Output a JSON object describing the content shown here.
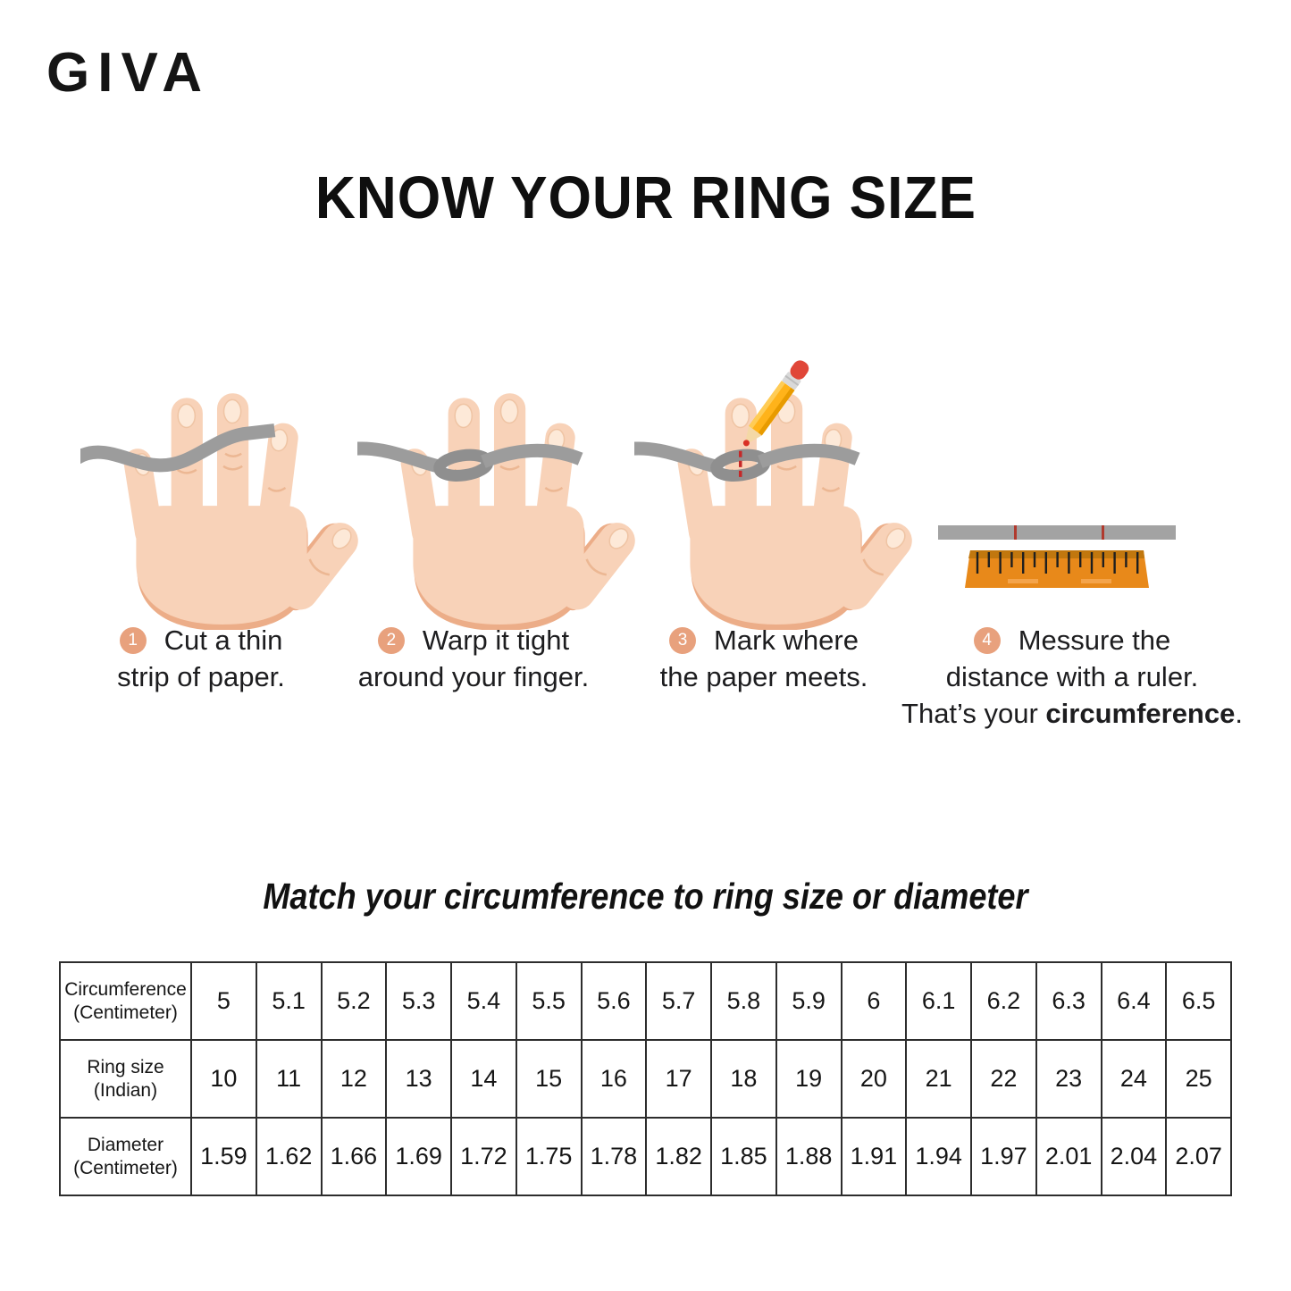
{
  "brand": {
    "name": "GIVA"
  },
  "title": "KNOW YOUR RING SIZE",
  "steps": [
    {
      "number": "1",
      "line1": "Cut a thin",
      "line2": "strip of paper."
    },
    {
      "number": "2",
      "line1": "Warp it tight",
      "line2": "around your finger."
    },
    {
      "number": "3",
      "line1": "Mark where",
      "line2": "the paper meets."
    },
    {
      "number": "4",
      "line1": "Messure the",
      "line2": "distance with a ruler.",
      "line3_prefix": "That’s your ",
      "line3_bold": "circumference",
      "line3_suffix": "."
    }
  ],
  "subtitle": "Match your circumference to ring size or diameter",
  "table": {
    "rows": [
      {
        "header_line1": "Circumference",
        "header_line2": "(Centimeter)",
        "values": [
          "5",
          "5.1",
          "5.2",
          "5.3",
          "5.4",
          "5.5",
          "5.6",
          "5.7",
          "5.8",
          "5.9",
          "6",
          "6.1",
          "6.2",
          "6.3",
          "6.4",
          "6.5"
        ]
      },
      {
        "header_line1": "Ring size",
        "header_line2": "(Indian)",
        "values": [
          "10",
          "11",
          "12",
          "13",
          "14",
          "15",
          "16",
          "17",
          "18",
          "19",
          "20",
          "21",
          "22",
          "23",
          "24",
          "25"
        ]
      },
      {
        "header_line1": "Diameter",
        "header_line2": "(Centimeter)",
        "values": [
          "1.59",
          "1.62",
          "1.66",
          "1.69",
          "1.72",
          "1.75",
          "1.78",
          "1.82",
          "1.85",
          "1.88",
          "1.91",
          "1.94",
          "1.97",
          "2.01",
          "2.04",
          "2.07"
        ]
      }
    ]
  },
  "icons": {
    "hand": "hand-with-paper-strip-icon",
    "pencil": "pencil-icon",
    "ruler": "ruler-icon"
  },
  "colors": {
    "badge": "#E8A17D",
    "skin": "#F8D2B8",
    "skin_shadow": "#ECAD88",
    "strip_gray": "#9C9C9C",
    "ruler_orange": "#E8891A",
    "ruler_top": "#C1770E",
    "mark_red": "#C62828",
    "text": "#1D1D1F"
  }
}
